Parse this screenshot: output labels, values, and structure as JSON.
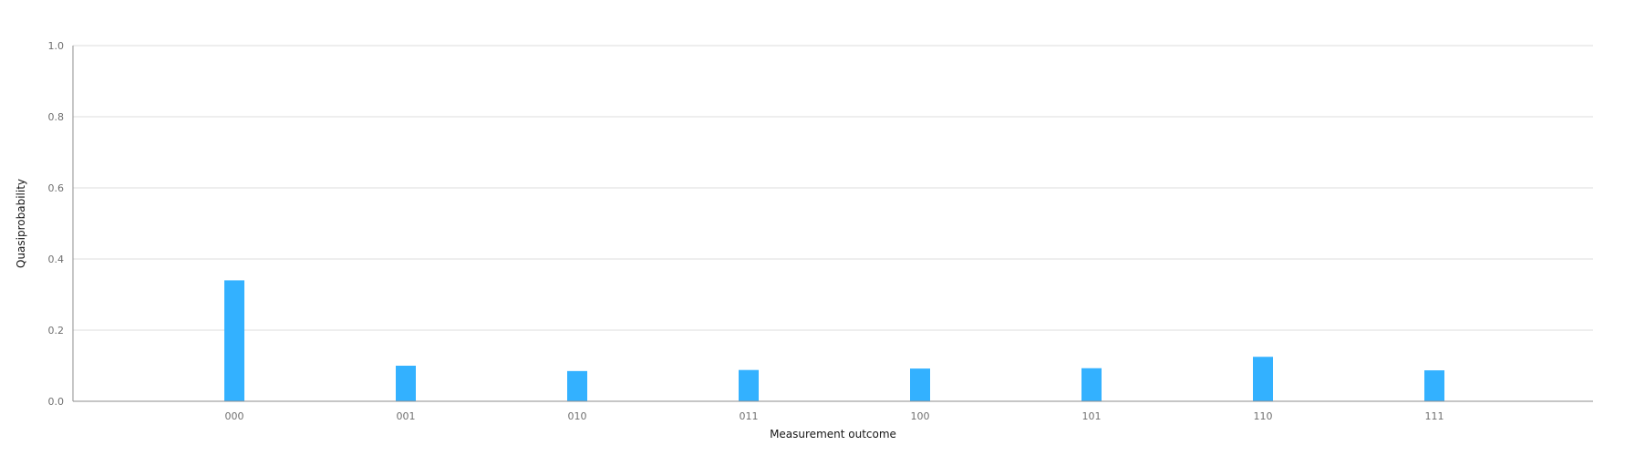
{
  "chart_data": {
    "type": "bar",
    "title": "",
    "xlabel": "Measurement outcome",
    "ylabel": "Quasiprobability",
    "categories": [
      "000",
      "001",
      "010",
      "011",
      "100",
      "101",
      "110",
      "111"
    ],
    "values": [
      0.34,
      0.1,
      0.085,
      0.088,
      0.092,
      0.093,
      0.125,
      0.087
    ],
    "ylim": [
      0,
      1.0
    ],
    "yticks": [
      "0.0",
      "0.2",
      "0.4",
      "0.6",
      "0.8",
      "1.0"
    ],
    "grid": true,
    "legend": "none",
    "bar_color": "#33b1ff"
  }
}
